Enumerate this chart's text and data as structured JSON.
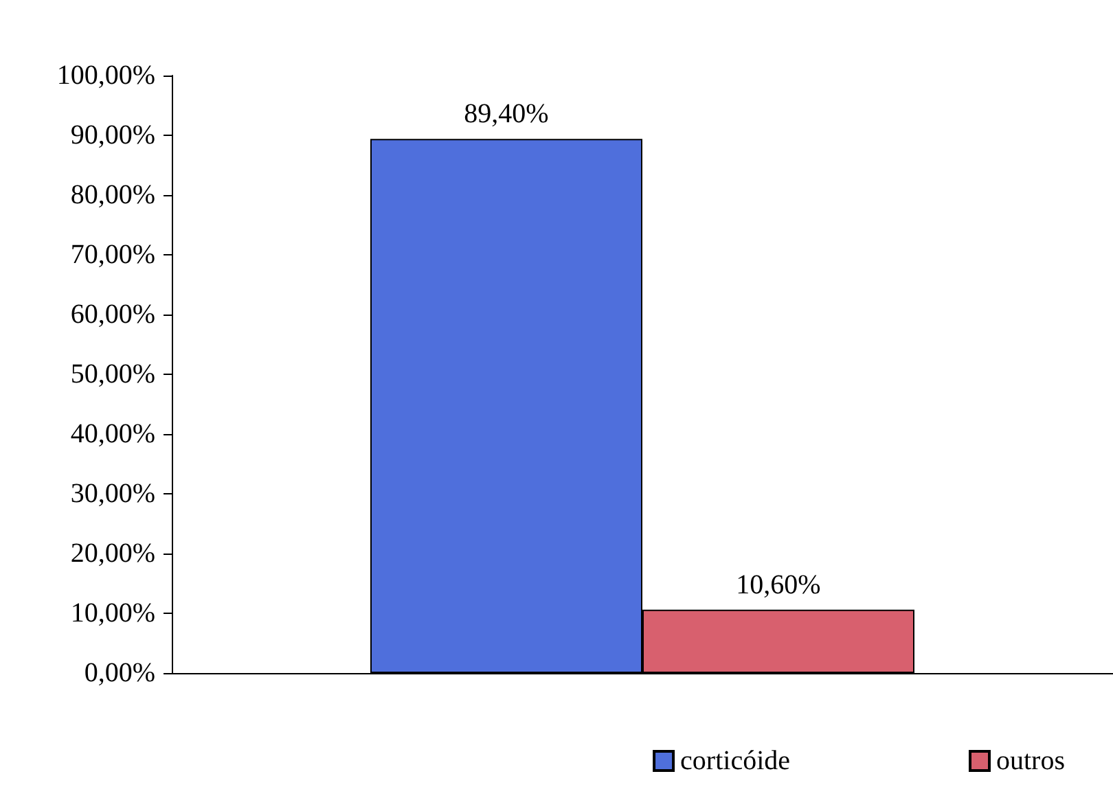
{
  "chart_data": {
    "type": "bar",
    "categories": [
      null
    ],
    "series": [
      {
        "name": "corticóide",
        "color": "#4f6fdc",
        "values": [
          89.4
        ],
        "value_labels": [
          "89,40%"
        ]
      },
      {
        "name": "outros",
        "color": "#d8606e",
        "values": [
          10.6
        ],
        "value_labels": [
          "10,60%"
        ]
      }
    ],
    "ylim": [
      0,
      100
    ],
    "yticks": [
      {
        "value": 0,
        "label": "0,00%"
      },
      {
        "value": 10,
        "label": "10,00%"
      },
      {
        "value": 20,
        "label": "20,00%"
      },
      {
        "value": 30,
        "label": "30,00%"
      },
      {
        "value": 40,
        "label": "40,00%"
      },
      {
        "value": 50,
        "label": "50,00%"
      },
      {
        "value": 60,
        "label": "60,00%"
      },
      {
        "value": 70,
        "label": "70,00%"
      },
      {
        "value": 80,
        "label": "80,00%"
      },
      {
        "value": 90,
        "label": "90,00%"
      },
      {
        "value": 100,
        "label": "100,00%"
      }
    ],
    "grid": false,
    "legend": "bottom right"
  }
}
